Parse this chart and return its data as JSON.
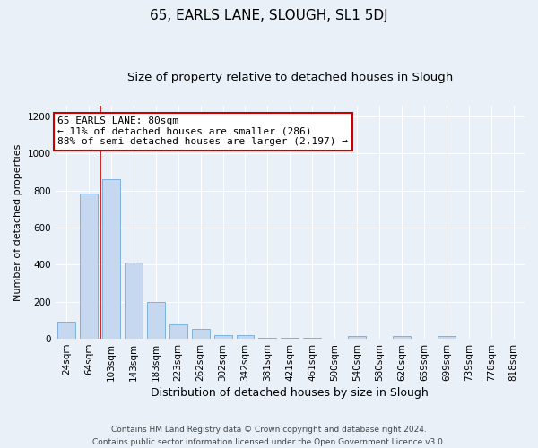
{
  "title": "65, EARLS LANE, SLOUGH, SL1 5DJ",
  "subtitle": "Size of property relative to detached houses in Slough",
  "xlabel": "Distribution of detached houses by size in Slough",
  "ylabel": "Number of detached properties",
  "categories": [
    "24sqm",
    "64sqm",
    "103sqm",
    "143sqm",
    "183sqm",
    "223sqm",
    "262sqm",
    "302sqm",
    "342sqm",
    "381sqm",
    "421sqm",
    "461sqm",
    "500sqm",
    "540sqm",
    "580sqm",
    "620sqm",
    "659sqm",
    "699sqm",
    "739sqm",
    "778sqm",
    "818sqm"
  ],
  "values": [
    90,
    785,
    860,
    410,
    200,
    80,
    55,
    20,
    20,
    5,
    5,
    5,
    0,
    15,
    0,
    15,
    0,
    15,
    0,
    0,
    0
  ],
  "bar_color": "#c5d8f0",
  "bar_edge_color": "#5a9fd4",
  "vertical_line_x": 1.5,
  "vertical_line_color": "#cc0000",
  "annotation_text": "65 EARLS LANE: 80sqm\n← 11% of detached houses are smaller (286)\n88% of semi-detached houses are larger (2,197) →",
  "annotation_box_color": "#ffffff",
  "annotation_box_edge_color": "#cc0000",
  "ylim": [
    0,
    1260
  ],
  "yticks": [
    0,
    200,
    400,
    600,
    800,
    1000,
    1200
  ],
  "background_color": "#eaf0f8",
  "grid_color": "#ffffff",
  "footnote": "Contains HM Land Registry data © Crown copyright and database right 2024.\nContains public sector information licensed under the Open Government Licence v3.0.",
  "title_fontsize": 11,
  "subtitle_fontsize": 9.5,
  "xlabel_fontsize": 9,
  "ylabel_fontsize": 8,
  "tick_fontsize": 7.5,
  "annotation_fontsize": 8,
  "footnote_fontsize": 6.5
}
